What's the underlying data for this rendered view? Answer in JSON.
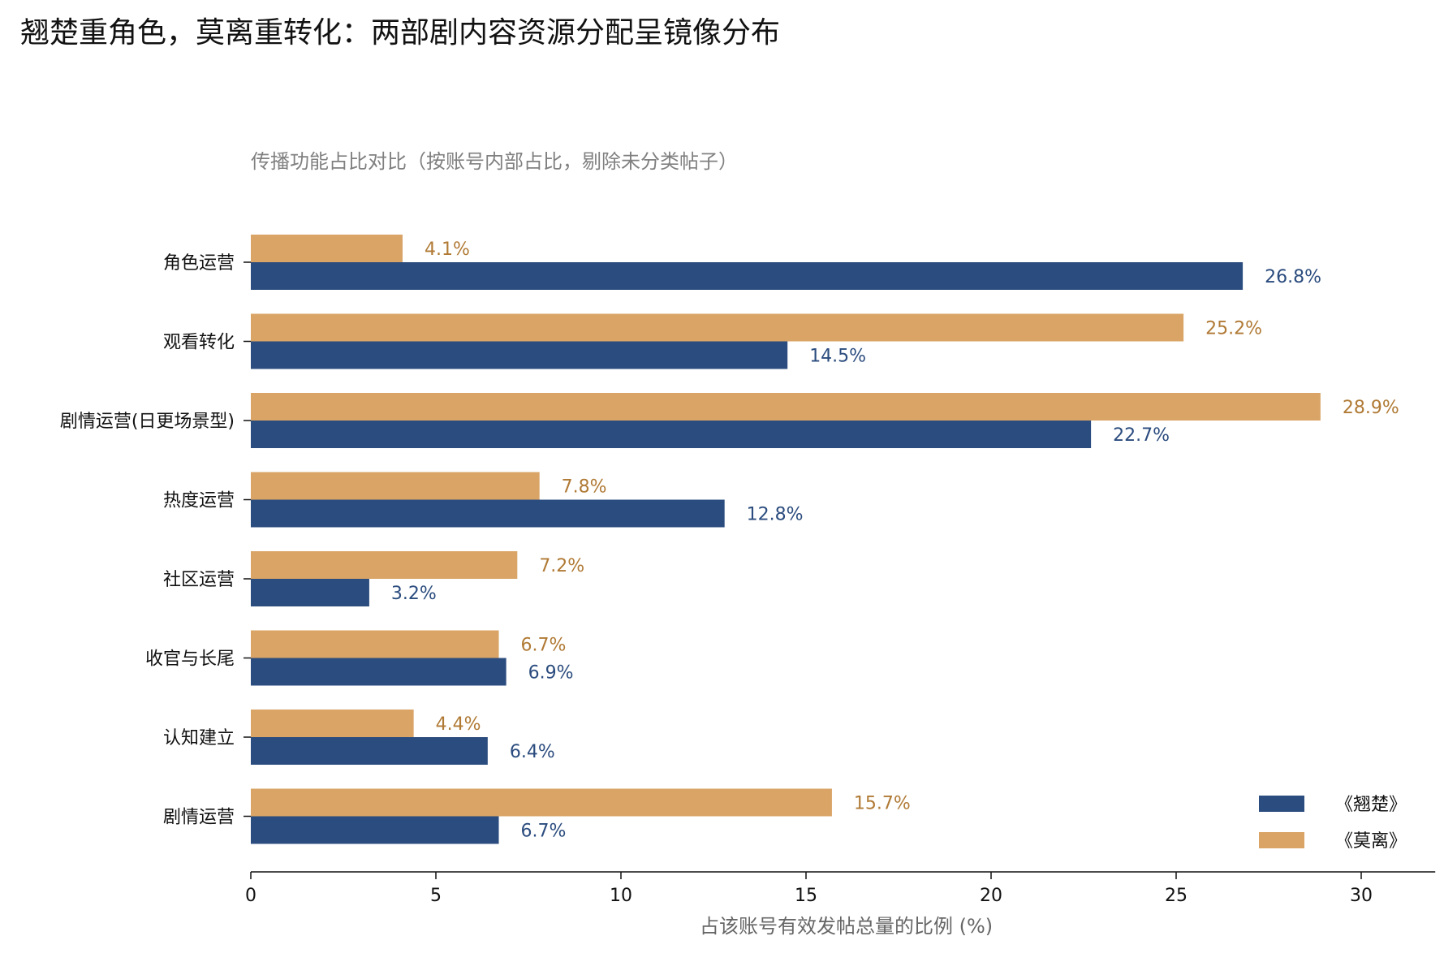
{
  "chart_data": {
    "type": "bar",
    "orientation": "horizontal",
    "title": "翘楚重角色，莫离重转化：两部剧内容资源分配呈镜像分布",
    "subtitle": "传播功能占比对比（按账号内部占比，剔除未分类帖子）",
    "xlabel": "占该账号有效发帖总量的比例 (%)",
    "xlim": [
      0,
      32
    ],
    "xticks": [
      0,
      5,
      10,
      15,
      20,
      25,
      30
    ],
    "categories": [
      "角色运营",
      "观看转化",
      "剧情运营(日更场景型)",
      "热度运营",
      "社区运营",
      "收官与长尾",
      "认知建立",
      "剧情运营"
    ],
    "series": [
      {
        "name": "《翘楚》",
        "color": "#2b4c7e",
        "values": [
          26.8,
          14.5,
          22.7,
          12.8,
          3.2,
          6.9,
          6.4,
          6.7
        ],
        "labels": [
          "26.8%",
          "14.5%",
          "22.7%",
          "12.8%",
          "3.2%",
          "6.9%",
          "6.4%",
          "6.7%"
        ]
      },
      {
        "name": "《莫离》",
        "color": "#d9a466",
        "label_color": "#b07a35",
        "values": [
          4.1,
          25.2,
          28.9,
          7.8,
          7.2,
          6.7,
          4.4,
          15.7
        ],
        "labels": [
          "4.1%",
          "25.2%",
          "28.9%",
          "7.8%",
          "7.2%",
          "6.7%",
          "4.4%",
          "15.7%"
        ]
      }
    ],
    "grid": false,
    "legend_position": "bottom-right"
  }
}
